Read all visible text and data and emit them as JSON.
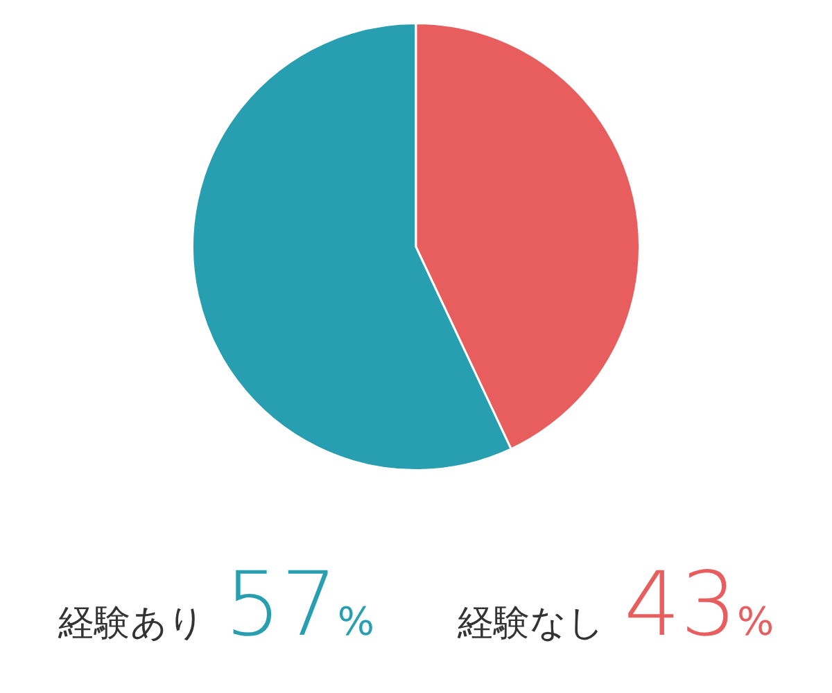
{
  "chart_data": {
    "type": "pie",
    "categories": [
      "経験あり",
      "経験なし"
    ],
    "values": [
      57,
      43
    ],
    "value_labels": [
      "57%",
      "43%"
    ],
    "colors": [
      "#289fb0",
      "#e85d5d"
    ]
  }
}
